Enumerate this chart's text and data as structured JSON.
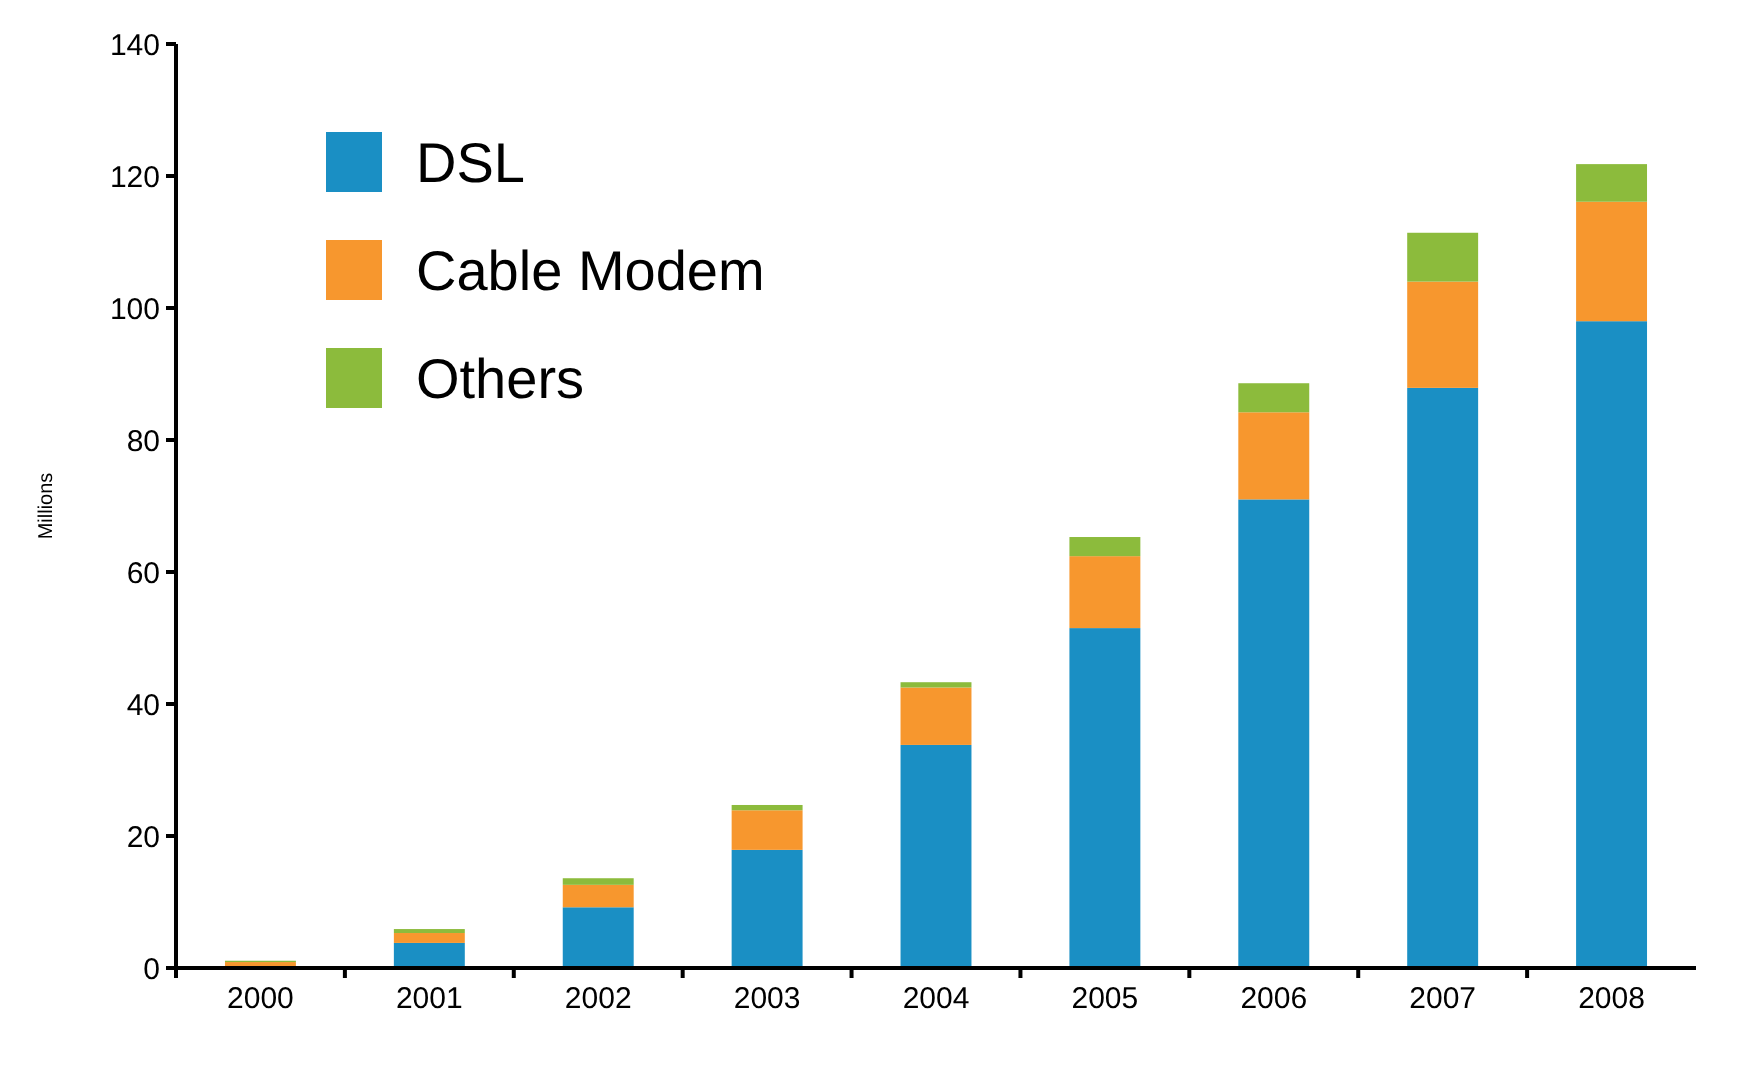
{
  "chart_data": {
    "type": "bar",
    "stacked": true,
    "ylabel": "Millions",
    "categories": [
      "2000",
      "2001",
      "2002",
      "2003",
      "2004",
      "2005",
      "2006",
      "2007",
      "2008"
    ],
    "series": [
      {
        "name": "DSL",
        "color": "#1a8fc4",
        "values": [
          null,
          3.8,
          9.2,
          17.9,
          33.8,
          51.5,
          71,
          87.9,
          98
        ]
      },
      {
        "name": "Cable Modem",
        "color": "#f7972e",
        "values": [
          0.9,
          1.5,
          3.4,
          6,
          8.7,
          10.9,
          13.2,
          16.1,
          18.1
        ]
      },
      {
        "name": "Others",
        "color": "#8cbb3c",
        "values": [
          0.2,
          0.6,
          1,
          0.8,
          0.8,
          2.9,
          4.4,
          7.4,
          5.7
        ]
      }
    ],
    "ylim": [
      0,
      140
    ],
    "yticks": [
      0,
      20,
      40,
      60,
      80,
      100,
      120,
      140
    ],
    "grid": false,
    "legend": "top left"
  }
}
